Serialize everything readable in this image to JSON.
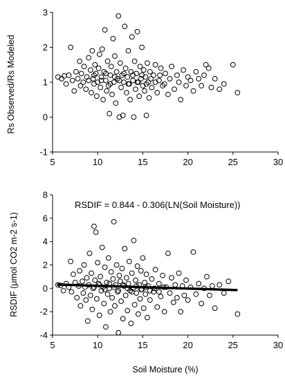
{
  "chart_data": [
    {
      "type": "scatter",
      "title": "",
      "xlabel": "",
      "ylabel": "Rs Observed/Rs Modeled",
      "xlim": [
        5,
        30
      ],
      "ylim": [
        -1,
        3
      ],
      "x_ticks": [
        5,
        10,
        15,
        20,
        25,
        30
      ],
      "y_ticks": [
        -1,
        0,
        1,
        2,
        3
      ],
      "grid": false,
      "legend": "none",
      "marker": "open-circle",
      "series": [
        {
          "points": [
            [
              5.6,
              1.15
            ],
            [
              6.0,
              1.1
            ],
            [
              6.3,
              1.18
            ],
            [
              6.5,
              0.95
            ],
            [
              6.8,
              1.2
            ],
            [
              7.0,
              2.0
            ],
            [
              7.2,
              1.05
            ],
            [
              7.4,
              0.75
            ],
            [
              7.6,
              1.3
            ],
            [
              7.8,
              1.1
            ],
            [
              8.0,
              1.6
            ],
            [
              8.1,
              0.9
            ],
            [
              8.2,
              1.25
            ],
            [
              8.4,
              1.0
            ],
            [
              8.5,
              1.45
            ],
            [
              8.7,
              0.8
            ],
            [
              8.8,
              1.15
            ],
            [
              9.0,
              1.7
            ],
            [
              9.0,
              1.05
            ],
            [
              9.2,
              1.35
            ],
            [
              9.3,
              0.7
            ],
            [
              9.4,
              1.9
            ],
            [
              9.5,
              1.1
            ],
            [
              9.6,
              0.95
            ],
            [
              9.7,
              1.5
            ],
            [
              9.8,
              1.25
            ],
            [
              9.9,
              0.6
            ],
            [
              10.0,
              1.0
            ],
            [
              10.1,
              1.4
            ],
            [
              10.2,
              1.8
            ],
            [
              10.3,
              0.85
            ],
            [
              10.4,
              1.15
            ],
            [
              10.5,
              1.95
            ],
            [
              10.6,
              0.5
            ],
            [
              10.7,
              1.3
            ],
            [
              10.8,
              2.5
            ],
            [
              10.9,
              1.05
            ],
            [
              11.0,
              0.75
            ],
            [
              11.1,
              1.6
            ],
            [
              11.2,
              0.9
            ],
            [
              11.3,
              0.1
            ],
            [
              11.4,
              1.2
            ],
            [
              11.5,
              1.45
            ],
            [
              11.6,
              0.65
            ],
            [
              11.7,
              2.25
            ],
            [
              11.8,
              1.0
            ],
            [
              11.9,
              1.75
            ],
            [
              12.0,
              0.4
            ],
            [
              12.1,
              1.3
            ],
            [
              12.2,
              1.1
            ],
            [
              12.3,
              2.9
            ],
            [
              12.4,
              0.0
            ],
            [
              12.5,
              1.55
            ],
            [
              12.6,
              0.85
            ],
            [
              12.7,
              1.2
            ],
            [
              12.8,
              0.05
            ],
            [
              12.9,
              1.0
            ],
            [
              13.0,
              2.6
            ],
            [
              13.1,
              1.4
            ],
            [
              13.2,
              0.7
            ],
            [
              13.3,
              1.15
            ],
            [
              13.4,
              1.9
            ],
            [
              13.5,
              0.95
            ],
            [
              13.6,
              0.5
            ],
            [
              13.7,
              1.3
            ],
            [
              13.8,
              2.3
            ],
            [
              13.9,
              1.05
            ],
            [
              14.0,
              0.0
            ],
            [
              14.1,
              1.6
            ],
            [
              14.2,
              0.8
            ],
            [
              14.3,
              1.25
            ],
            [
              14.4,
              2.45
            ],
            [
              14.5,
              1.0
            ],
            [
              14.6,
              0.6
            ],
            [
              14.7,
              1.45
            ],
            [
              14.8,
              1.1
            ],
            [
              14.9,
              2.0
            ],
            [
              15.0,
              0.9
            ],
            [
              15.1,
              1.35
            ],
            [
              15.2,
              0.75
            ],
            [
              15.3,
              1.15
            ],
            [
              15.4,
              0.05
            ],
            [
              15.5,
              1.55
            ],
            [
              15.6,
              1.0
            ],
            [
              15.7,
              0.55
            ],
            [
              15.8,
              1.3
            ],
            [
              16.0,
              0.85
            ],
            [
              16.2,
              1.2
            ],
            [
              16.4,
              1.5
            ],
            [
              16.6,
              0.7
            ],
            [
              16.8,
              1.05
            ],
            [
              17.0,
              1.4
            ],
            [
              17.2,
              0.9
            ],
            [
              17.5,
              1.25
            ],
            [
              17.8,
              0.65
            ],
            [
              18.0,
              1.1
            ],
            [
              18.2,
              1.45
            ],
            [
              18.5,
              0.8
            ],
            [
              18.8,
              1.2
            ],
            [
              19.0,
              1.0
            ],
            [
              19.2,
              0.5
            ],
            [
              19.5,
              1.35
            ],
            [
              19.8,
              0.9
            ],
            [
              20.0,
              1.15
            ],
            [
              20.3,
              1.05
            ],
            [
              20.6,
              0.75
            ],
            [
              20.9,
              1.3
            ],
            [
              21.2,
              1.1
            ],
            [
              21.5,
              0.9
            ],
            [
              21.8,
              1.2
            ],
            [
              22.0,
              1.5
            ],
            [
              22.3,
              1.4
            ],
            [
              22.6,
              0.85
            ],
            [
              23.0,
              1.1
            ],
            [
              23.5,
              0.8
            ],
            [
              24.0,
              0.95
            ],
            [
              25.0,
              1.5
            ],
            [
              25.5,
              0.7
            ],
            [
              9.6,
              1.2
            ],
            [
              10.4,
              1.05
            ],
            [
              10.9,
              1.25
            ],
            [
              11.4,
              0.95
            ],
            [
              11.9,
              1.15
            ],
            [
              12.4,
              1.05
            ],
            [
              12.9,
              1.25
            ],
            [
              13.4,
              0.95
            ],
            [
              13.9,
              1.2
            ],
            [
              14.4,
              1.0
            ],
            [
              14.9,
              1.2
            ],
            [
              15.4,
              0.95
            ],
            [
              15.9,
              1.1
            ],
            [
              16.4,
              1.0
            ],
            [
              16.9,
              1.2
            ],
            [
              17.4,
              0.95
            ]
          ]
        }
      ]
    },
    {
      "type": "scatter",
      "title": "",
      "xlabel": "Soil Moisture (%)",
      "ylabel": "RSDIF (μmol CO2 m-2 s-1)",
      "xlim": [
        5,
        30
      ],
      "ylim": [
        -4,
        8
      ],
      "x_ticks": [
        5,
        10,
        15,
        20,
        25,
        30
      ],
      "y_ticks": [
        -4,
        -2,
        0,
        2,
        4,
        6,
        8
      ],
      "grid": false,
      "legend": "none",
      "marker": "open-circle",
      "annotation": "RSDIF = 0.844 - 0.306(LN(Soil Moisture))",
      "trendline": {
        "intercept": 0.844,
        "slope": -0.306,
        "function": "ln",
        "x_range": [
          5.5,
          25.5
        ]
      },
      "series": [
        {
          "points": [
            [
              5.6,
              0.3
            ],
            [
              5.9,
              0.25
            ],
            [
              6.2,
              -0.2
            ],
            [
              6.5,
              0.4
            ],
            [
              6.8,
              0.1
            ],
            [
              7.0,
              2.3
            ],
            [
              7.1,
              -0.3
            ],
            [
              7.3,
              1.2
            ],
            [
              7.5,
              0.5
            ],
            [
              7.7,
              -0.8
            ],
            [
              7.9,
              0.2
            ],
            [
              8.0,
              1.5
            ],
            [
              8.1,
              -1.5
            ],
            [
              8.3,
              0.6
            ],
            [
              8.4,
              -0.4
            ],
            [
              8.5,
              2.0
            ],
            [
              8.6,
              0.1
            ],
            [
              8.7,
              -1.0
            ],
            [
              8.8,
              0.9
            ],
            [
              8.9,
              -2.8
            ],
            [
              9.0,
              0.3
            ],
            [
              9.1,
              3.0
            ],
            [
              9.2,
              -0.6
            ],
            [
              9.3,
              1.3
            ],
            [
              9.4,
              -1.8
            ],
            [
              9.5,
              0.0
            ],
            [
              9.6,
              5.3
            ],
            [
              9.7,
              0.7
            ],
            [
              9.8,
              4.8
            ],
            [
              9.9,
              -0.9
            ],
            [
              10.0,
              2.2
            ],
            [
              10.1,
              0.4
            ],
            [
              10.2,
              -2.3
            ],
            [
              10.3,
              1.0
            ],
            [
              10.4,
              -0.2
            ],
            [
              10.5,
              3.5
            ],
            [
              10.6,
              0.1
            ],
            [
              10.7,
              -1.3
            ],
            [
              10.8,
              1.8
            ],
            [
              10.9,
              -3.3
            ],
            [
              11.0,
              0.5
            ],
            [
              11.1,
              -0.5
            ],
            [
              11.2,
              2.6
            ],
            [
              11.3,
              0.0
            ],
            [
              11.4,
              -2.0
            ],
            [
              11.5,
              1.4
            ],
            [
              11.6,
              -0.8
            ],
            [
              11.7,
              0.8
            ],
            [
              11.8,
              5.7
            ],
            [
              11.9,
              -1.5
            ],
            [
              12.0,
              0.3
            ],
            [
              12.1,
              2.0
            ],
            [
              12.2,
              -0.3
            ],
            [
              12.3,
              -3.8
            ],
            [
              12.4,
              1.1
            ],
            [
              12.5,
              0.6
            ],
            [
              12.6,
              -1.1
            ],
            [
              12.7,
              1.7
            ],
            [
              12.8,
              -2.6
            ],
            [
              12.9,
              0.2
            ],
            [
              13.0,
              3.4
            ],
            [
              13.1,
              -0.6
            ],
            [
              13.2,
              0.9
            ],
            [
              13.3,
              -1.9
            ],
            [
              13.4,
              0.4
            ],
            [
              13.5,
              2.3
            ],
            [
              13.6,
              -0.2
            ],
            [
              13.7,
              -3.0
            ],
            [
              13.8,
              1.3
            ],
            [
              13.9,
              0.0
            ],
            [
              14.0,
              4.1
            ],
            [
              14.1,
              -1.4
            ],
            [
              14.2,
              0.7
            ],
            [
              14.3,
              -0.4
            ],
            [
              14.4,
              1.9
            ],
            [
              14.5,
              -2.2
            ],
            [
              14.6,
              0.3
            ],
            [
              14.7,
              -0.9
            ],
            [
              14.8,
              1.5
            ],
            [
              14.9,
              -0.1
            ],
            [
              15.0,
              2.6
            ],
            [
              15.1,
              -1.7
            ],
            [
              15.2,
              0.5
            ],
            [
              15.3,
              -0.5
            ],
            [
              15.4,
              1.2
            ],
            [
              15.5,
              -2.5
            ],
            [
              15.6,
              0.2
            ],
            [
              15.8,
              -1.0
            ],
            [
              16.0,
              0.8
            ],
            [
              16.2,
              -0.3
            ],
            [
              16.4,
              1.6
            ],
            [
              16.6,
              -1.6
            ],
            [
              16.8,
              0.4
            ],
            [
              17.0,
              -0.7
            ],
            [
              17.2,
              1.1
            ],
            [
              17.4,
              -2.0
            ],
            [
              17.6,
              0.1
            ],
            [
              17.8,
              3.0
            ],
            [
              18.0,
              -0.4
            ],
            [
              18.2,
              0.9
            ],
            [
              18.4,
              -1.2
            ],
            [
              18.6,
              0.3
            ],
            [
              18.8,
              -0.8
            ],
            [
              19.0,
              1.3
            ],
            [
              19.2,
              -2.0
            ],
            [
              19.4,
              0.2
            ],
            [
              19.6,
              -0.6
            ],
            [
              19.8,
              0.7
            ],
            [
              20.0,
              -1.0
            ],
            [
              20.3,
              0.1
            ],
            [
              20.6,
              3.1
            ],
            [
              20.9,
              -0.5
            ],
            [
              21.2,
              0.4
            ],
            [
              21.5,
              -1.3
            ],
            [
              21.8,
              0.0
            ],
            [
              22.1,
              1.0
            ],
            [
              22.4,
              -0.6
            ],
            [
              22.7,
              0.2
            ],
            [
              23.0,
              -1.7
            ],
            [
              23.5,
              0.3
            ],
            [
              24.0,
              -0.4
            ],
            [
              24.5,
              0.6
            ],
            [
              25.5,
              -2.2
            ],
            [
              9.6,
              0.1
            ],
            [
              10.2,
              0.3
            ],
            [
              10.8,
              -0.1
            ],
            [
              11.3,
              0.4
            ],
            [
              11.8,
              0.1
            ],
            [
              12.3,
              -0.2
            ],
            [
              12.8,
              0.3
            ],
            [
              13.3,
              0.0
            ],
            [
              13.8,
              -0.3
            ],
            [
              14.3,
              0.2
            ],
            [
              14.8,
              -0.1
            ],
            [
              15.3,
              0.1
            ],
            [
              15.8,
              -0.2
            ],
            [
              16.3,
              0.0
            ],
            [
              16.8,
              -0.3
            ],
            [
              17.3,
              0.1
            ]
          ]
        }
      ]
    }
  ]
}
